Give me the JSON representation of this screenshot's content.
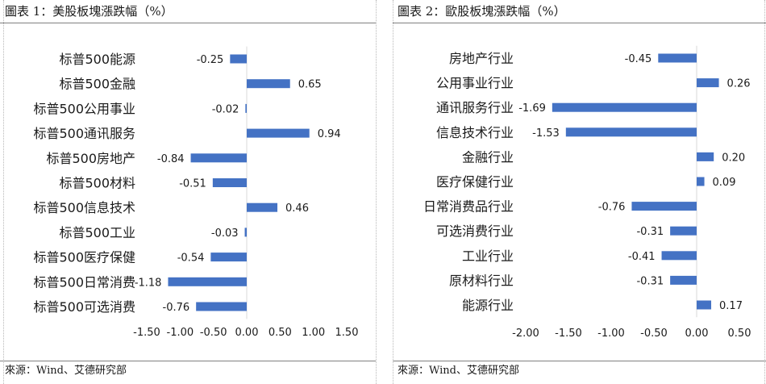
{
  "colors": {
    "bar": "#4472C4",
    "text": "#1a1a1a",
    "axis": "#d9d9d9",
    "rule": "#808080"
  },
  "left": {
    "title": "圖表 1：美股板塊漲跌幅（%）",
    "source": "來源：Wind、艾德研究部",
    "chart_data": {
      "type": "bar",
      "orientation": "horizontal",
      "categories": [
        "标普500能源",
        "标普500金融",
        "标普500公用事业",
        "标普500通讯服务",
        "标普500房地产",
        "标普500材料",
        "标普500信息技术",
        "标普500工业",
        "标普500医疗保健",
        "标普500日常消费",
        "标普500可选消费"
      ],
      "values": [
        -0.25,
        0.65,
        -0.02,
        0.94,
        -0.84,
        -0.51,
        0.46,
        -0.03,
        -0.54,
        -1.18,
        -0.76
      ],
      "data_labels": [
        "-0.25",
        "0.65",
        "-0.02",
        "0.94",
        "-0.84",
        "-0.51",
        "0.46",
        "-0.03",
        "-0.54",
        "-1.18",
        "-0.76"
      ],
      "xlim": [
        -1.5,
        1.5
      ],
      "xticks": [
        -1.5,
        -1.0,
        -0.5,
        0.0,
        0.5,
        1.0,
        1.5
      ],
      "xtick_labels": [
        "-1.50",
        "-1.00",
        "-0.50",
        "0.00",
        "0.50",
        "1.00",
        "1.50"
      ],
      "grid": false,
      "legend": "none"
    }
  },
  "right": {
    "title": "圖表 2：歐股板塊漲跌幅（%）",
    "source": "來源：Wind、艾德研究部",
    "chart_data": {
      "type": "bar",
      "orientation": "horizontal",
      "categories": [
        "房地产行业",
        "公用事业行业",
        "通讯服务行业",
        "信息技术行业",
        "金融行业",
        "医疗保健行业",
        "日常消费品行业",
        "可选消费行业",
        "工业行业",
        "原材料行业",
        "能源行业"
      ],
      "values": [
        -0.45,
        0.26,
        -1.69,
        -1.53,
        0.2,
        0.09,
        -0.76,
        -0.31,
        -0.41,
        -0.31,
        0.17
      ],
      "data_labels": [
        "-0.45",
        "0.26",
        "-1.69",
        "-1.53",
        "0.20",
        "0.09",
        "-0.76",
        "-0.31",
        "-0.41",
        "-0.31",
        "0.17"
      ],
      "xlim": [
        -2.0,
        0.5
      ],
      "xticks": [
        -2.0,
        -1.5,
        -1.0,
        -0.5,
        0.0,
        0.5
      ],
      "xtick_labels": [
        "-2.00",
        "-1.50",
        "-1.00",
        "-0.50",
        "0.00",
        "0.50"
      ],
      "grid": false,
      "legend": "none"
    }
  }
}
